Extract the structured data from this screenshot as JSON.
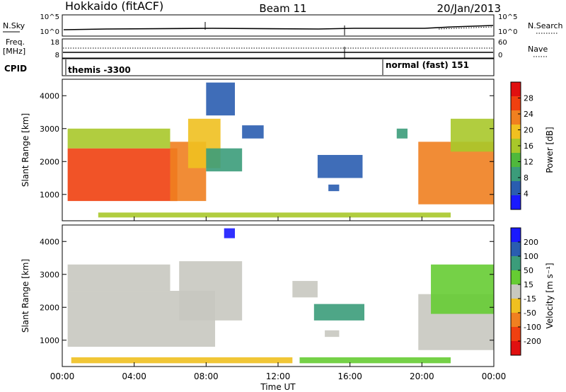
{
  "header": {
    "station": "Hokkaido (fitACF)",
    "beam": "Beam 11",
    "date": "20/Jan/2013"
  },
  "status_panels": {
    "nsky_label": "N.Sky",
    "nsearch_label": "N.Search",
    "freq_label_1": "Freq.",
    "freq_label_2": "[MHz]",
    "nave_label": "Nave",
    "cpid_label": "CPID",
    "noise_ticks_left": [
      "10^5",
      "10^0"
    ],
    "noise_ticks_right": [
      "10^5",
      "10^0"
    ],
    "freq_ticks": [
      "18",
      "8"
    ],
    "nave_ticks": [
      "60",
      "0"
    ],
    "cpid_segments": [
      {
        "label": "themis -3300",
        "start_hour": 0
      },
      {
        "label": "normal (fast) 151",
        "start_hour": 18.0
      }
    ]
  },
  "x_axis": {
    "label": "Time UT",
    "ticks": [
      "00:00",
      "04:00",
      "08:00",
      "12:00",
      "16:00",
      "20:00",
      "00:00"
    ],
    "range_hours": [
      0,
      24
    ]
  },
  "chart_data": [
    {
      "type": "heatmap",
      "name": "power",
      "ylabel": "Slant Range [km]",
      "yticks": [
        "1000",
        "2000",
        "3000",
        "4000"
      ],
      "ylim": [
        200,
        4500
      ],
      "colorbar_label": "Power [dB]",
      "colorbar_ticks": [
        "4",
        "8",
        "12",
        "16",
        "20",
        "24",
        "28"
      ],
      "colorbar_range": [
        0,
        32
      ],
      "colors": [
        "#1a1aff",
        "#2a5db0",
        "#3b9c7a",
        "#4fb83c",
        "#a8c82a",
        "#f0c020",
        "#f08020",
        "#f04010",
        "#e01010"
      ],
      "regions": [
        {
          "t0": 0.3,
          "t1": 6.4,
          "r0": 800,
          "r1": 2400,
          "level": 0.85
        },
        {
          "t0": 0.3,
          "t1": 6.0,
          "r0": 2400,
          "r1": 3000,
          "level": 0.55
        },
        {
          "t0": 6.0,
          "t1": 8.0,
          "r0": 800,
          "r1": 2600,
          "level": 0.7
        },
        {
          "t0": 7.0,
          "t1": 8.8,
          "r0": 1800,
          "r1": 3300,
          "level": 0.65
        },
        {
          "t0": 8.0,
          "t1": 10.0,
          "r0": 1700,
          "r1": 2400,
          "level": 0.3
        },
        {
          "t0": 8.0,
          "t1": 9.6,
          "r0": 3400,
          "r1": 4400,
          "level": 0.15
        },
        {
          "t0": 10.0,
          "t1": 11.2,
          "r0": 2700,
          "r1": 3100,
          "level": 0.1
        },
        {
          "t0": 14.2,
          "t1": 16.7,
          "r0": 1500,
          "r1": 2200,
          "level": 0.1
        },
        {
          "t0": 14.8,
          "t1": 15.4,
          "r0": 1100,
          "r1": 1300,
          "level": 0.1
        },
        {
          "t0": 2.0,
          "t1": 21.6,
          "r0": 300,
          "r1": 450,
          "level": 0.55
        },
        {
          "t0": 18.6,
          "t1": 19.2,
          "r0": 2700,
          "r1": 3000,
          "level": 0.25
        },
        {
          "t0": 19.8,
          "t1": 24.0,
          "r0": 700,
          "r1": 2600,
          "level": 0.8
        },
        {
          "t0": 21.6,
          "t1": 24.0,
          "r0": 2300,
          "r1": 3300,
          "level": 0.5
        }
      ]
    },
    {
      "type": "heatmap",
      "name": "velocity",
      "ylabel": "Slant Range [km]",
      "yticks": [
        "1000",
        "2000",
        "3000",
        "4000"
      ],
      "ylim": [
        200,
        4500
      ],
      "colorbar_label": "Velocity [m s⁻¹]",
      "colorbar_ticks": [
        "-200",
        "-100",
        "-50",
        "-15",
        "15",
        "50",
        "100",
        "200"
      ],
      "colorbar_range": [
        -250,
        250
      ],
      "colors": [
        "#e01010",
        "#f04010",
        "#f08020",
        "#f0c020",
        "#c8c8c0",
        "#66cc33",
        "#3b9c7a",
        "#2a5db0",
        "#1a1aff"
      ],
      "regions": [
        {
          "t0": 0.3,
          "t1": 8.5,
          "r0": 800,
          "r1": 2500,
          "level": 0.5
        },
        {
          "t0": 0.3,
          "t1": 6.0,
          "r0": 2500,
          "r1": 3300,
          "level": 0.5
        },
        {
          "t0": 6.5,
          "t1": 10.0,
          "r0": 1600,
          "r1": 3400,
          "level": 0.5
        },
        {
          "t0": 12.8,
          "t1": 14.2,
          "r0": 2300,
          "r1": 2800,
          "level": 0.5
        },
        {
          "t0": 14.0,
          "t1": 16.8,
          "r0": 1600,
          "r1": 2100,
          "level": 0.7
        },
        {
          "t0": 14.6,
          "t1": 15.4,
          "r0": 1100,
          "r1": 1300,
          "level": 0.5
        },
        {
          "t0": 13.2,
          "t1": 21.6,
          "r0": 300,
          "r1": 480,
          "level": 0.65
        },
        {
          "t0": 0.5,
          "t1": 12.8,
          "r0": 300,
          "r1": 480,
          "level": 0.35
        },
        {
          "t0": 19.8,
          "t1": 24.0,
          "r0": 700,
          "r1": 2400,
          "level": 0.5
        },
        {
          "t0": 20.5,
          "t1": 24.0,
          "r0": 1800,
          "r1": 3300,
          "level": 0.65
        },
        {
          "t0": 9.0,
          "t1": 9.6,
          "r0": 4100,
          "r1": 4400,
          "level": 0.95
        }
      ]
    }
  ]
}
